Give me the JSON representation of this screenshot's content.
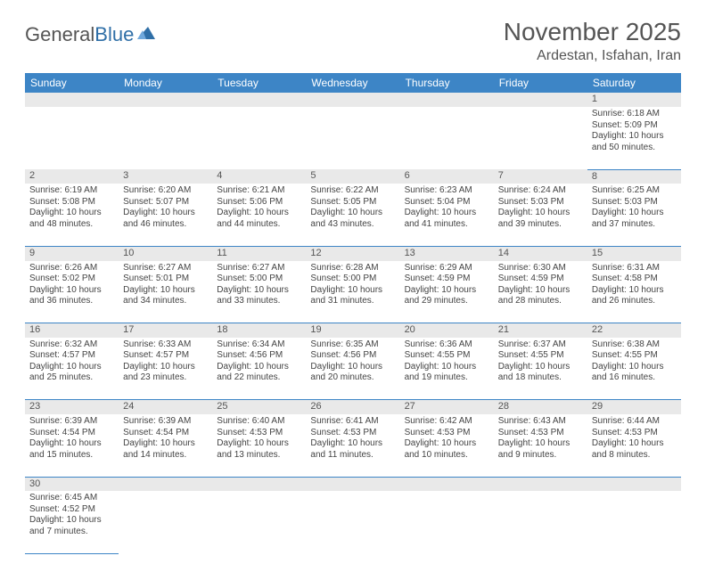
{
  "logo": {
    "general": "General",
    "blue": "Blue"
  },
  "title": "November 2025",
  "location": "Ardestan, Isfahan, Iran",
  "weekdays": [
    "Sunday",
    "Monday",
    "Tuesday",
    "Wednesday",
    "Thursday",
    "Friday",
    "Saturday"
  ],
  "colors": {
    "header_bg": "#3d85c6",
    "header_text": "#ffffff",
    "daynum_bg": "#e9e9e9",
    "cell_border": "#3d85c6",
    "text": "#444444",
    "background": "#ffffff"
  },
  "weeks": [
    {
      "nums": [
        "",
        "",
        "",
        "",
        "",
        "",
        "1"
      ],
      "cells": [
        null,
        null,
        null,
        null,
        null,
        null,
        {
          "sr": "Sunrise: 6:18 AM",
          "ss": "Sunset: 5:09 PM",
          "d1": "Daylight: 10 hours",
          "d2": "and 50 minutes."
        }
      ]
    },
    {
      "nums": [
        "2",
        "3",
        "4",
        "5",
        "6",
        "7",
        "8"
      ],
      "cells": [
        {
          "sr": "Sunrise: 6:19 AM",
          "ss": "Sunset: 5:08 PM",
          "d1": "Daylight: 10 hours",
          "d2": "and 48 minutes."
        },
        {
          "sr": "Sunrise: 6:20 AM",
          "ss": "Sunset: 5:07 PM",
          "d1": "Daylight: 10 hours",
          "d2": "and 46 minutes."
        },
        {
          "sr": "Sunrise: 6:21 AM",
          "ss": "Sunset: 5:06 PM",
          "d1": "Daylight: 10 hours",
          "d2": "and 44 minutes."
        },
        {
          "sr": "Sunrise: 6:22 AM",
          "ss": "Sunset: 5:05 PM",
          "d1": "Daylight: 10 hours",
          "d2": "and 43 minutes."
        },
        {
          "sr": "Sunrise: 6:23 AM",
          "ss": "Sunset: 5:04 PM",
          "d1": "Daylight: 10 hours",
          "d2": "and 41 minutes."
        },
        {
          "sr": "Sunrise: 6:24 AM",
          "ss": "Sunset: 5:03 PM",
          "d1": "Daylight: 10 hours",
          "d2": "and 39 minutes."
        },
        {
          "sr": "Sunrise: 6:25 AM",
          "ss": "Sunset: 5:03 PM",
          "d1": "Daylight: 10 hours",
          "d2": "and 37 minutes."
        }
      ]
    },
    {
      "nums": [
        "9",
        "10",
        "11",
        "12",
        "13",
        "14",
        "15"
      ],
      "cells": [
        {
          "sr": "Sunrise: 6:26 AM",
          "ss": "Sunset: 5:02 PM",
          "d1": "Daylight: 10 hours",
          "d2": "and 36 minutes."
        },
        {
          "sr": "Sunrise: 6:27 AM",
          "ss": "Sunset: 5:01 PM",
          "d1": "Daylight: 10 hours",
          "d2": "and 34 minutes."
        },
        {
          "sr": "Sunrise: 6:27 AM",
          "ss": "Sunset: 5:00 PM",
          "d1": "Daylight: 10 hours",
          "d2": "and 33 minutes."
        },
        {
          "sr": "Sunrise: 6:28 AM",
          "ss": "Sunset: 5:00 PM",
          "d1": "Daylight: 10 hours",
          "d2": "and 31 minutes."
        },
        {
          "sr": "Sunrise: 6:29 AM",
          "ss": "Sunset: 4:59 PM",
          "d1": "Daylight: 10 hours",
          "d2": "and 29 minutes."
        },
        {
          "sr": "Sunrise: 6:30 AM",
          "ss": "Sunset: 4:59 PM",
          "d1": "Daylight: 10 hours",
          "d2": "and 28 minutes."
        },
        {
          "sr": "Sunrise: 6:31 AM",
          "ss": "Sunset: 4:58 PM",
          "d1": "Daylight: 10 hours",
          "d2": "and 26 minutes."
        }
      ]
    },
    {
      "nums": [
        "16",
        "17",
        "18",
        "19",
        "20",
        "21",
        "22"
      ],
      "cells": [
        {
          "sr": "Sunrise: 6:32 AM",
          "ss": "Sunset: 4:57 PM",
          "d1": "Daylight: 10 hours",
          "d2": "and 25 minutes."
        },
        {
          "sr": "Sunrise: 6:33 AM",
          "ss": "Sunset: 4:57 PM",
          "d1": "Daylight: 10 hours",
          "d2": "and 23 minutes."
        },
        {
          "sr": "Sunrise: 6:34 AM",
          "ss": "Sunset: 4:56 PM",
          "d1": "Daylight: 10 hours",
          "d2": "and 22 minutes."
        },
        {
          "sr": "Sunrise: 6:35 AM",
          "ss": "Sunset: 4:56 PM",
          "d1": "Daylight: 10 hours",
          "d2": "and 20 minutes."
        },
        {
          "sr": "Sunrise: 6:36 AM",
          "ss": "Sunset: 4:55 PM",
          "d1": "Daylight: 10 hours",
          "d2": "and 19 minutes."
        },
        {
          "sr": "Sunrise: 6:37 AM",
          "ss": "Sunset: 4:55 PM",
          "d1": "Daylight: 10 hours",
          "d2": "and 18 minutes."
        },
        {
          "sr": "Sunrise: 6:38 AM",
          "ss": "Sunset: 4:55 PM",
          "d1": "Daylight: 10 hours",
          "d2": "and 16 minutes."
        }
      ]
    },
    {
      "nums": [
        "23",
        "24",
        "25",
        "26",
        "27",
        "28",
        "29"
      ],
      "cells": [
        {
          "sr": "Sunrise: 6:39 AM",
          "ss": "Sunset: 4:54 PM",
          "d1": "Daylight: 10 hours",
          "d2": "and 15 minutes."
        },
        {
          "sr": "Sunrise: 6:39 AM",
          "ss": "Sunset: 4:54 PM",
          "d1": "Daylight: 10 hours",
          "d2": "and 14 minutes."
        },
        {
          "sr": "Sunrise: 6:40 AM",
          "ss": "Sunset: 4:53 PM",
          "d1": "Daylight: 10 hours",
          "d2": "and 13 minutes."
        },
        {
          "sr": "Sunrise: 6:41 AM",
          "ss": "Sunset: 4:53 PM",
          "d1": "Daylight: 10 hours",
          "d2": "and 11 minutes."
        },
        {
          "sr": "Sunrise: 6:42 AM",
          "ss": "Sunset: 4:53 PM",
          "d1": "Daylight: 10 hours",
          "d2": "and 10 minutes."
        },
        {
          "sr": "Sunrise: 6:43 AM",
          "ss": "Sunset: 4:53 PM",
          "d1": "Daylight: 10 hours",
          "d2": "and 9 minutes."
        },
        {
          "sr": "Sunrise: 6:44 AM",
          "ss": "Sunset: 4:53 PM",
          "d1": "Daylight: 10 hours",
          "d2": "and 8 minutes."
        }
      ]
    },
    {
      "nums": [
        "30",
        "",
        "",
        "",
        "",
        "",
        ""
      ],
      "cells": [
        {
          "sr": "Sunrise: 6:45 AM",
          "ss": "Sunset: 4:52 PM",
          "d1": "Daylight: 10 hours",
          "d2": "and 7 minutes."
        },
        null,
        null,
        null,
        null,
        null,
        null
      ]
    }
  ]
}
